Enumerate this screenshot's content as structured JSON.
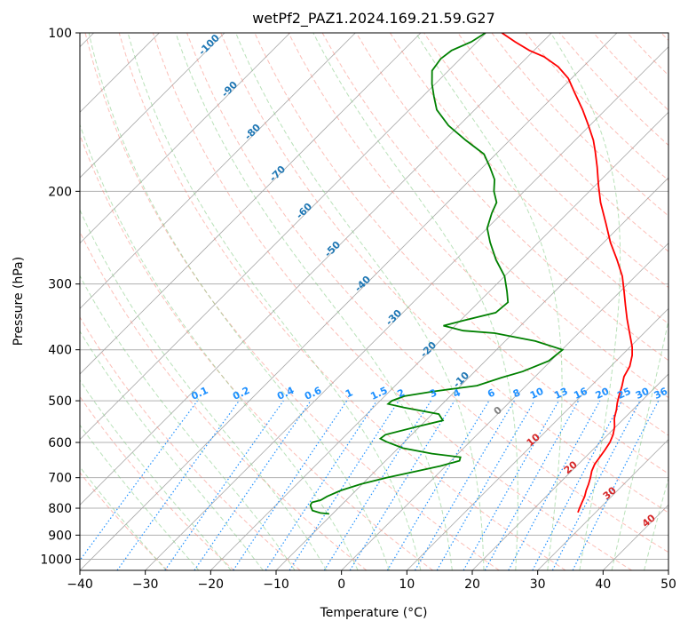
{
  "chart_data": {
    "type": "skew-t",
    "title": "wetPf2_PAZ1.2024.169.21.59.G27",
    "xlabel": "Temperature (°C)",
    "ylabel": "Pressure (hPa)",
    "xlim": [
      -40,
      50
    ],
    "ylim": [
      1050,
      100
    ],
    "log_y": true,
    "grid": true,
    "x_ticks": [
      -40,
      -30,
      -20,
      -10,
      0,
      10,
      20,
      30,
      40,
      50
    ],
    "y_ticks": [
      100,
      200,
      300,
      400,
      500,
      600,
      700,
      800,
      900,
      1000
    ],
    "colors": {
      "temperature": "#ff0000",
      "dewpoint": "#008000",
      "isotherm": "#a8a8a8",
      "dry_adiabat": "#fa8072",
      "moist_adiabat": "#7fc97f",
      "mixing_ratio": "#1e90ff",
      "isotherm_label": "#1f77b4",
      "moist_label_warm": "#d62728",
      "moist_label_zero": "#7f7f7f"
    },
    "series": [
      {
        "name": "Temperature",
        "points": [
          [
            815,
            27.3
          ],
          [
            800,
            26.9
          ],
          [
            780,
            26.4
          ],
          [
            760,
            25.9
          ],
          [
            740,
            25.2
          ],
          [
            720,
            24.6
          ],
          [
            700,
            23.9
          ],
          [
            680,
            23.1
          ],
          [
            660,
            22.5
          ],
          [
            640,
            22.2
          ],
          [
            620,
            21.9
          ],
          [
            600,
            21.5
          ],
          [
            580,
            20.8
          ],
          [
            560,
            19.8
          ],
          [
            540,
            18.5
          ],
          [
            520,
            17.5
          ],
          [
            505,
            16.6
          ],
          [
            490,
            15.8
          ],
          [
            470,
            14.8
          ],
          [
            450,
            13.6
          ],
          [
            430,
            12.9
          ],
          [
            410,
            11.6
          ],
          [
            395,
            10.3
          ],
          [
            370,
            7.6
          ],
          [
            350,
            5.3
          ],
          [
            330,
            3.0
          ],
          [
            310,
            0.6
          ],
          [
            290,
            -2.0
          ],
          [
            270,
            -5.3
          ],
          [
            250,
            -9.0
          ],
          [
            230,
            -12.6
          ],
          [
            210,
            -16.6
          ],
          [
            195,
            -19.5
          ],
          [
            180,
            -22.5
          ],
          [
            168,
            -25.2
          ],
          [
            160,
            -27.2
          ],
          [
            150,
            -30.2
          ],
          [
            140,
            -33.5
          ],
          [
            130,
            -37.3
          ],
          [
            122,
            -40.5
          ],
          [
            116,
            -43.8
          ],
          [
            111,
            -47.5
          ],
          [
            108,
            -50.7
          ],
          [
            104,
            -54.2
          ],
          [
            100,
            -57.6
          ]
        ]
      },
      {
        "name": "Dewpoint",
        "points": [
          [
            820,
            -10.5
          ],
          [
            817,
            -12.0
          ],
          [
            808,
            -13.6
          ],
          [
            790,
            -14.7
          ],
          [
            780,
            -14.9
          ],
          [
            772,
            -13.9
          ],
          [
            760,
            -13.5
          ],
          [
            740,
            -12.3
          ],
          [
            720,
            -10.2
          ],
          [
            700,
            -7.3
          ],
          [
            680,
            -3.6
          ],
          [
            665,
            -0.8
          ],
          [
            650,
            1.3
          ],
          [
            640,
            0.9
          ],
          [
            630,
            -4.0
          ],
          [
            615,
            -9.3
          ],
          [
            598,
            -12.8
          ],
          [
            590,
            -14.2
          ],
          [
            580,
            -14.0
          ],
          [
            560,
            -10.4
          ],
          [
            545,
            -7.4
          ],
          [
            530,
            -9.0
          ],
          [
            515,
            -15.3
          ],
          [
            507,
            -18.3
          ],
          [
            500,
            -18.2
          ],
          [
            490,
            -17.0
          ],
          [
            480,
            -13.3
          ],
          [
            468,
            -7.5
          ],
          [
            452,
            -5.0
          ],
          [
            440,
            -2.7
          ],
          [
            420,
            -0.3
          ],
          [
            400,
            0.1
          ],
          [
            385,
            -5.4
          ],
          [
            372,
            -12.8
          ],
          [
            368,
            -18.0
          ],
          [
            360,
            -21.8
          ],
          [
            352,
            -19.5
          ],
          [
            340,
            -15.8
          ],
          [
            325,
            -15.5
          ],
          [
            310,
            -17.3
          ],
          [
            290,
            -20.0
          ],
          [
            270,
            -23.8
          ],
          [
            250,
            -27.4
          ],
          [
            235,
            -30.0
          ],
          [
            220,
            -31.6
          ],
          [
            210,
            -32.5
          ],
          [
            200,
            -34.6
          ],
          [
            190,
            -36.3
          ],
          [
            180,
            -38.9
          ],
          [
            170,
            -41.8
          ],
          [
            160,
            -46.7
          ],
          [
            150,
            -51.6
          ],
          [
            140,
            -55.8
          ],
          [
            132,
            -58.3
          ],
          [
            125,
            -60.5
          ],
          [
            118,
            -62.5
          ],
          [
            112,
            -63.0
          ],
          [
            108,
            -62.6
          ],
          [
            104,
            -60.9
          ],
          [
            100,
            -60.1
          ]
        ]
      }
    ],
    "isotherm_labels": [
      "-100",
      "-90",
      "-80",
      "-70",
      "-60",
      "-50",
      "-40",
      "-30",
      "-20",
      "-10"
    ],
    "mixing_ratio_labels": [
      "0.1",
      "0.2",
      "0.4",
      "0.6",
      "1",
      "1.5",
      "2",
      "3",
      "4",
      "6",
      "8",
      "10",
      "13",
      "16",
      "20",
      "25",
      "30",
      "36"
    ],
    "moist_adiabat_labels": [
      "0",
      "10",
      "20",
      "30",
      "40"
    ]
  }
}
